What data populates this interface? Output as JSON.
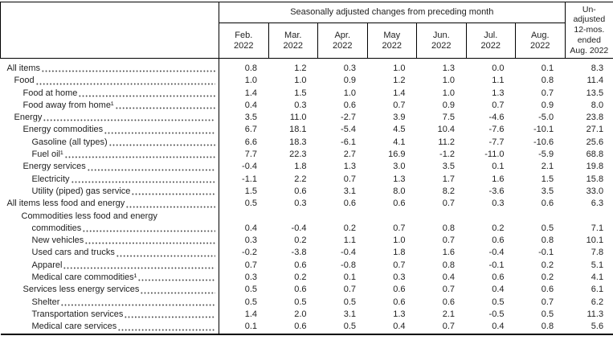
{
  "table": {
    "group_header": "Seasonally adjusted changes from preceding month",
    "unadjusted_header": "Un-\nadjusted\n12-mos.\nended\nAug. 2022",
    "months": [
      {
        "name": "Feb.",
        "year": "2022"
      },
      {
        "name": "Mar.",
        "year": "2022"
      },
      {
        "name": "Apr.",
        "year": "2022"
      },
      {
        "name": "May",
        "year": "2022"
      },
      {
        "name": "Jun.",
        "year": "2022"
      },
      {
        "name": "Jul.",
        "year": "2022"
      },
      {
        "name": "Aug.",
        "year": "2022"
      }
    ],
    "rows": [
      {
        "label": "All items",
        "indent": 8,
        "values": [
          "0.8",
          "1.2",
          "0.3",
          "1.0",
          "1.3",
          "0.0",
          "0.1",
          "8.3"
        ]
      },
      {
        "label": "Food",
        "indent": 17,
        "values": [
          "1.0",
          "1.0",
          "0.9",
          "1.2",
          "1.0",
          "1.1",
          "0.8",
          "11.4"
        ]
      },
      {
        "label": "Food at home",
        "indent": 28,
        "values": [
          "1.4",
          "1.5",
          "1.0",
          "1.4",
          "1.0",
          "1.3",
          "0.7",
          "13.5"
        ]
      },
      {
        "label": "Food away from home¹",
        "indent": 28,
        "values": [
          "0.4",
          "0.3",
          "0.6",
          "0.7",
          "0.9",
          "0.7",
          "0.9",
          "8.0"
        ]
      },
      {
        "label": "Energy",
        "indent": 17,
        "values": [
          "3.5",
          "11.0",
          "-2.7",
          "3.9",
          "7.5",
          "-4.6",
          "-5.0",
          "23.8"
        ]
      },
      {
        "label": "Energy commodities",
        "indent": 28,
        "values": [
          "6.7",
          "18.1",
          "-5.4",
          "4.5",
          "10.4",
          "-7.6",
          "-10.1",
          "27.1"
        ]
      },
      {
        "label": "Gasoline (all types)",
        "indent": 39,
        "values": [
          "6.6",
          "18.3",
          "-6.1",
          "4.1",
          "11.2",
          "-7.7",
          "-10.6",
          "25.6"
        ]
      },
      {
        "label": "Fuel oil¹",
        "indent": 39,
        "values": [
          "7.7",
          "22.3",
          "2.7",
          "16.9",
          "-1.2",
          "-11.0",
          "-5.9",
          "68.8"
        ]
      },
      {
        "label": "Energy services",
        "indent": 28,
        "values": [
          "-0.4",
          "1.8",
          "1.3",
          "3.0",
          "3.5",
          "0.1",
          "2.1",
          "19.8"
        ]
      },
      {
        "label": "Electricity",
        "indent": 39,
        "values": [
          "-1.1",
          "2.2",
          "0.7",
          "1.3",
          "1.7",
          "1.6",
          "1.5",
          "15.8"
        ]
      },
      {
        "label": "Utility (piped) gas service",
        "indent": 39,
        "values": [
          "1.5",
          "0.6",
          "3.1",
          "8.0",
          "8.2",
          "-3.6",
          "3.5",
          "33.0"
        ]
      },
      {
        "label": "All items less food and energy",
        "indent": 8,
        "values": [
          "0.5",
          "0.3",
          "0.6",
          "0.6",
          "0.7",
          "0.3",
          "0.6",
          "6.3"
        ]
      },
      {
        "label": "Commodities less food and energy",
        "indent": 26,
        "label2": "commodities",
        "indent2": 39,
        "values": [
          "0.4",
          "-0.4",
          "0.2",
          "0.7",
          "0.8",
          "0.2",
          "0.5",
          "7.1"
        ]
      },
      {
        "label": "New vehicles",
        "indent": 39,
        "values": [
          "0.3",
          "0.2",
          "1.1",
          "1.0",
          "0.7",
          "0.6",
          "0.8",
          "10.1"
        ]
      },
      {
        "label": "Used cars and trucks",
        "indent": 39,
        "values": [
          "-0.2",
          "-3.8",
          "-0.4",
          "1.8",
          "1.6",
          "-0.4",
          "-0.1",
          "7.8"
        ]
      },
      {
        "label": "Apparel",
        "indent": 39,
        "values": [
          "0.7",
          "0.6",
          "-0.8",
          "0.7",
          "0.8",
          "-0.1",
          "0.2",
          "5.1"
        ]
      },
      {
        "label": "Medical care commodities¹",
        "indent": 39,
        "values": [
          "0.3",
          "0.2",
          "0.1",
          "0.3",
          "0.4",
          "0.6",
          "0.2",
          "4.1"
        ]
      },
      {
        "label": "Services less energy services",
        "indent": 28,
        "values": [
          "0.5",
          "0.6",
          "0.7",
          "0.6",
          "0.7",
          "0.4",
          "0.6",
          "6.1"
        ]
      },
      {
        "label": "Shelter",
        "indent": 39,
        "values": [
          "0.5",
          "0.5",
          "0.5",
          "0.6",
          "0.6",
          "0.5",
          "0.7",
          "6.2"
        ]
      },
      {
        "label": "Transportation services",
        "indent": 39,
        "values": [
          "1.4",
          "2.0",
          "3.1",
          "1.3",
          "2.1",
          "-0.5",
          "0.5",
          "11.3"
        ]
      },
      {
        "label": "Medical care services",
        "indent": 39,
        "values": [
          "0.1",
          "0.6",
          "0.5",
          "0.4",
          "0.7",
          "0.4",
          "0.8",
          "5.6"
        ]
      }
    ]
  }
}
